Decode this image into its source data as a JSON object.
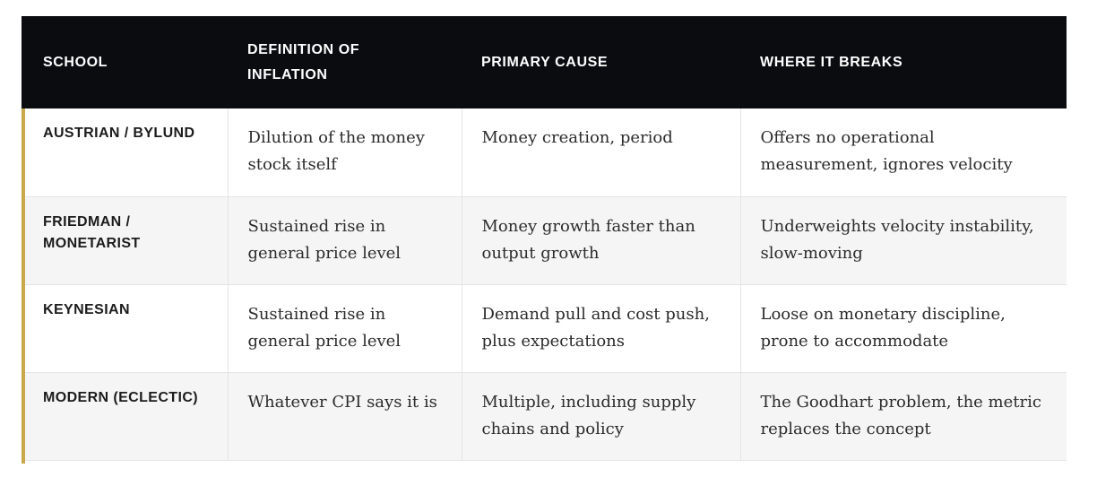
{
  "table": {
    "headers": [
      "SCHOOL",
      "DEFINITION OF INFLATION",
      "PRIMARY CAUSE",
      "WHERE IT BREAKS"
    ],
    "rows": [
      {
        "school": "AUSTRIAN / BYLUND",
        "definition": "Dilution of the money stock itself",
        "cause": "Money creation, period",
        "breaks": "Offers no operational measurement, ignores velocity"
      },
      {
        "school": "FRIEDMAN / MONETARIST",
        "definition": "Sustained rise in general price level",
        "cause": "Money growth faster than output growth",
        "breaks": "Underweights velocity instability, slow-moving"
      },
      {
        "school": "KEYNESIAN",
        "definition": "Sustained rise in general price level",
        "cause": "Demand pull and cost push, plus expectations",
        "breaks": "Loose on monetary discipline, prone to accommodate"
      },
      {
        "school": "MODERN (ECLECTIC)",
        "definition": "Whatever CPI says it is",
        "cause": "Multiple, including supply chains and policy",
        "breaks": "The Goodhart problem, the metric replaces the concept"
      }
    ],
    "colors": {
      "header_bg": "#0b0c10",
      "header_text": "#ffffff",
      "accent": "#c8a84a",
      "row_alt": "#f5f5f5"
    }
  }
}
